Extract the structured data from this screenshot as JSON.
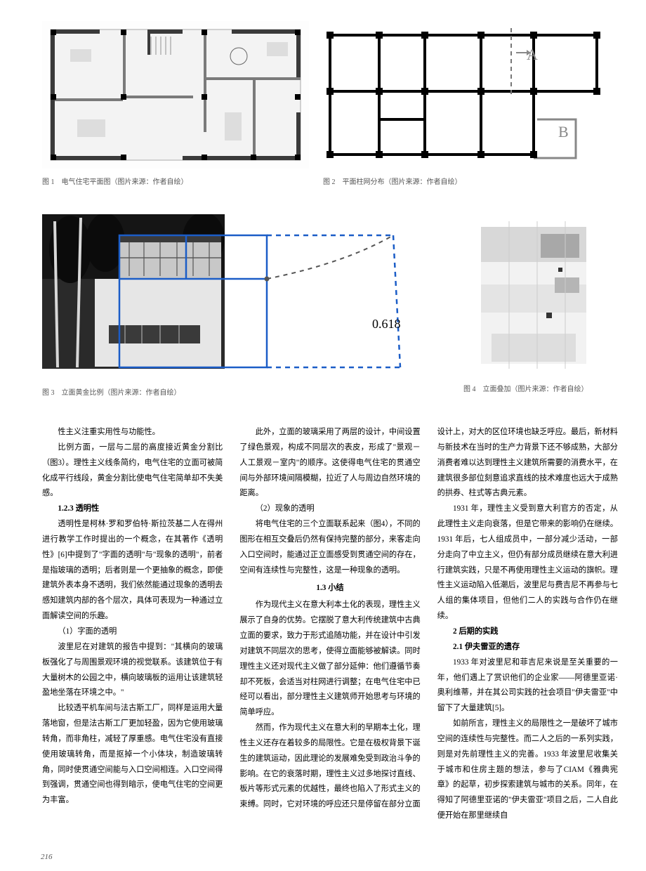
{
  "figures": {
    "fig1": {
      "caption": "图 1　电气住宅平面图（图片来源：作者自绘）"
    },
    "fig2": {
      "caption": "图 2　平面柱网分布（图片来源：作者自绘）",
      "labelA": "A",
      "labelB": "B"
    },
    "fig3": {
      "caption": "图 3　立面黄金比例（图片来源：作者自绘）",
      "ratio": "0.618"
    },
    "fig4": {
      "caption": "图 4　立面叠加（图片来源：作者自绘）"
    }
  },
  "colors": {
    "figLine": "#1b5dc7",
    "gridLine": "#000000",
    "dashLine": "#555555",
    "planBg": "#f0f0f0",
    "planWall": "#949494",
    "planDark": "#3a3a3a"
  },
  "body": {
    "paras": [
      {
        "t": "p",
        "v": "性主义注重实用性与功能性。"
      },
      {
        "t": "p",
        "v": "比例方面，一层与二层的高度接近黄金分割比（图3）。理性主义线条简约，电气住宅的立面可被简化成平行线段，黄金分割比使电气住宅简单却不失美感。"
      },
      {
        "t": "h",
        "v": "1.2.3 透明性"
      },
      {
        "t": "p",
        "v": "透明性是柯林·罗和罗伯特·斯拉茨基二人在得州进行教学工作时提出的一个概念，在其著作《透明性》[6]中提到了\"字面的透明\"与\"现象的透明\"，前者是指玻璃的透明；后者则是一个更抽象的概念，即使建筑外表本身不透明，我们依然能通过现象的透明去感知建筑内部的各个层次，具体可表现为一种通过立面解读空间的乐趣。"
      },
      {
        "t": "p",
        "v": "（1）字面的透明"
      },
      {
        "t": "p",
        "v": "波里尼在对建筑的报告中提到：\"其横向的玻璃板强化了与周围景观环境的视觉联系。该建筑位于有大量树木的公园之中，横向玻璃板的运用让该建筑轻盈地坐落在环境之中。\""
      },
      {
        "t": "p",
        "v": "比较透平机车间与法古斯工厂，同样是运用大量落地窗，但是法古斯工厂更加轻盈，因为它使用玻璃转角，而非角柱，减轻了厚重感。电气住宅没有直接使用玻璃转角，而是抠掉一个小体块，制造玻璃转角，同时使贯通空间能与入口空间相连。入口空间得到强调，贯通空间也得到暗示，使电气住宅的空间更为丰富。"
      },
      {
        "t": "p",
        "v": "此外，立面的玻璃采用了两层的设计，中间设置了绿色景观，构成不同层次的表皮，形成了\"景观－人工景观－室内\"的顺序。这使得电气住宅的贯通空间与外部环境间隔模糊，拉近了人与周边自然环境的距离。"
      },
      {
        "t": "p",
        "v": "（2）现象的透明"
      },
      {
        "t": "p",
        "v": "将电气住宅的三个立面联系起来（图4），不同的图形在相互交叠后仍然有保持完整的部分，来客走向入口空间时，能通过正立面感受到贯通空间的存在，空间有连续性与完整性，这是一种现象的透明。"
      },
      {
        "t": "h-c",
        "v": "1.3 小结"
      },
      {
        "t": "p",
        "v": "作为现代主义在意大利本土化的表现，理性主义展示了自身的优势。它摆脱了意大利传统建筑中古典立面的要求，致力于形式追随功能，并在设计中引发对建筑不同层次的思考，使得立面能够被解读。同时理性主义还对现代主义做了部分延伸：他们遵循节奏却不死板，会适当对柱网进行调整；在电气住宅中已经可以看出，部分理性主义建筑师开始思考与环境的简单呼应。"
      },
      {
        "t": "p",
        "v": "然而，作为现代主义在意大利的早期本土化，理性主义还存在着较多的局限性。它是在极权背景下诞生的建筑运动，因此理论的发展难免受到政治斗争的影响。在它的衰落时期，理性主义过多地探讨直线、板片等形式元素的优越性，最终也陷入了形式主义的束缚。同时，它对环境的呼应还只是停留在部分立面设计上，对大的区位环境也缺乏呼应。最后，新材料与新技术在当时的生产力背景下还不够成熟，大部分消费者难以达到理性主义建筑所需要的消费水平，在建筑很多部位刻意追求直线的技术难度也远大于成熟的拱券、柱式等古典元素。"
      },
      {
        "t": "p",
        "v": "1931 年，理性主义受到意大利官方的否定，从此理性主义走向衰落，但是它带来的影响仍在继续。1931 年后，七人组成员中，一部分减少活动，一部分走向了中立主义，但仍有部分成员继续在意大利进行建筑实践，只是不再使用理性主义运动的旗帜。理性主义运动陷入低潮后，波里尼与费吉尼不再参与七人组的集体项目，但他们二人的实践与合作仍在继续。"
      },
      {
        "t": "h",
        "v": "2 后期的实践"
      },
      {
        "t": "h",
        "v": "2.1 伊夫雷亚的遗存"
      },
      {
        "t": "p",
        "v": "1933 年对波里尼和菲吉尼来说是至关重要的一年，他们遇上了赏识他们的企业家——阿德里亚诺·奥利维蒂，并在其公司实践的社会项目\"伊夫雷亚\"中留下了大量建筑[5]。"
      },
      {
        "t": "p",
        "v": "如前所言，理性主义的局限性之一是破坏了城市空间的连续性与完整性。而二人之后的一系列实践，则是对先前理性主义的完善。1933 年波里尼收集关于城市和住房主题的想法，参与了CIAM《雅典宪章》的起草，初步探索建筑与城市的关系。同年，在得知了阿德里亚诺的\"伊夫雷亚\"项目之后，二人自此便开始在那里继续自"
      }
    ]
  },
  "pageNumber": "216"
}
